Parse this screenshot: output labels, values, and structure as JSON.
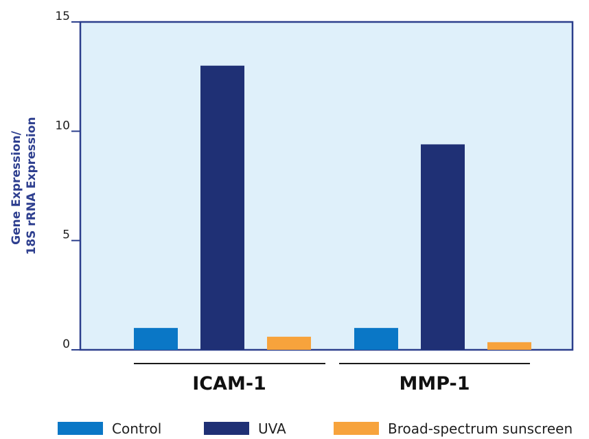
{
  "chart_data": {
    "type": "bar",
    "categories": [
      "ICAM-1",
      "MMP-1"
    ],
    "series": [
      {
        "name": "Control",
        "values": [
          1.0,
          1.0
        ],
        "color": "#0a77c6"
      },
      {
        "name": "UVA",
        "values": [
          13.0,
          9.4
        ],
        "color": "#1f3075"
      },
      {
        "name": "Broad-spectrum sunscreen",
        "values": [
          0.6,
          0.35
        ],
        "color": "#f7a33c"
      }
    ],
    "title": "",
    "ylabel_lines": [
      "Gene Expression/",
      "18S rRNA Expression"
    ],
    "xlabel": "",
    "ylim": [
      0,
      15
    ],
    "yticks": [
      0,
      5,
      10,
      15
    ],
    "ytick_labels": [
      "0",
      "5",
      "10",
      "15"
    ],
    "grid": false,
    "legend_position": "bottom",
    "plot_background": "#dff0fa",
    "frame_color": "#2b3e8c"
  }
}
